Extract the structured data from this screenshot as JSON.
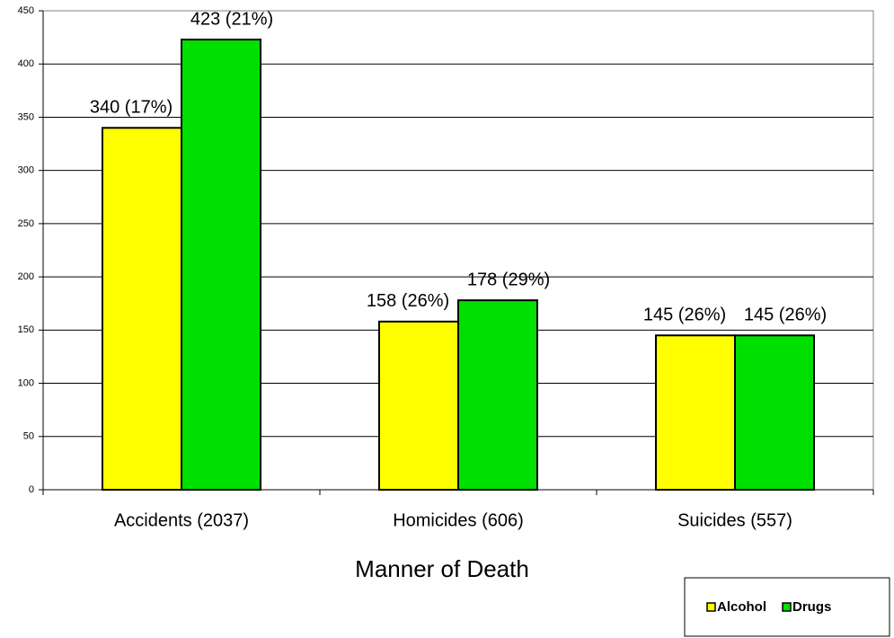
{
  "chart_data": {
    "type": "bar",
    "x_label": "Manner of Death",
    "categories": [
      "Accidents (2037)",
      "Homicides (606)",
      "Suicides (557)"
    ],
    "series": [
      {
        "name": "Alcohol",
        "color": "#ffff00",
        "values": [
          340,
          158,
          145
        ],
        "value_labels": [
          "340 (17%)",
          "158 (26%)",
          "145 (26%)"
        ]
      },
      {
        "name": "Drugs",
        "color": "#00e000",
        "values": [
          423,
          178,
          145
        ],
        "value_labels": [
          "423 (21%)",
          "178 (29%)",
          "145 (26%)"
        ]
      }
    ],
    "ylim": [
      0,
      450
    ],
    "yticks": [
      0,
      50,
      100,
      150,
      200,
      250,
      300,
      350,
      400,
      450
    ],
    "grid": true,
    "legend": "bottom-right"
  }
}
